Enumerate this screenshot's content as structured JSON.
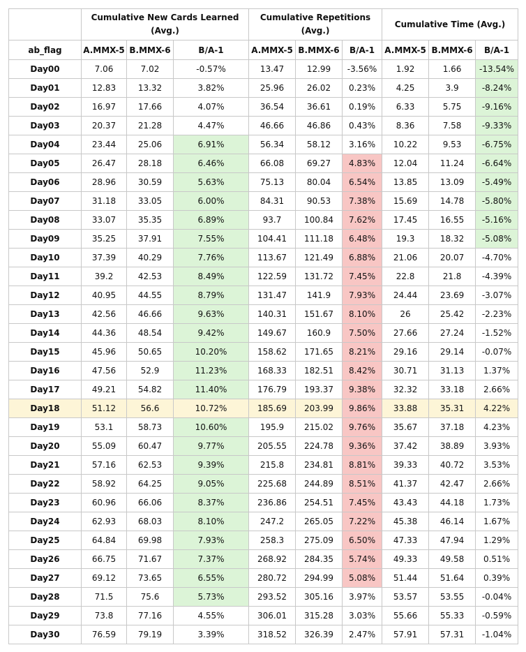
{
  "headers": {
    "groups": [
      "Cumulative New Cards Learned (Avg.)",
      "Cumulative Repetitions (Avg.)",
      "Cumulative Time (Avg.)"
    ],
    "row_label": "ab_flag",
    "sub": [
      "A.MMX-5",
      "B.MMX-6",
      "B/A-1",
      "A.MMX-5",
      "B.MMX-6",
      "B/A-1",
      "A.MMX-5",
      "B.MMX-6",
      "B/A-1"
    ]
  },
  "colors": {
    "positive_fill": "#dcf4d7",
    "negative_fill": "#f8c6c4",
    "highlight_row": "#fdf5d7"
  },
  "highlight_row": "Day18",
  "rows": [
    {
      "day": "Day00",
      "c1": [
        "7.06",
        "7.02",
        "-0.57%"
      ],
      "c2": [
        "13.47",
        "12.99",
        "-3.56%"
      ],
      "c3": [
        "1.92",
        "1.66",
        "-13.54%"
      ],
      "s1": "",
      "s2": "",
      "s3": "pos"
    },
    {
      "day": "Day01",
      "c1": [
        "12.83",
        "13.32",
        "3.82%"
      ],
      "c2": [
        "25.96",
        "26.02",
        "0.23%"
      ],
      "c3": [
        "4.25",
        "3.9",
        "-8.24%"
      ],
      "s1": "",
      "s2": "",
      "s3": "pos"
    },
    {
      "day": "Day02",
      "c1": [
        "16.97",
        "17.66",
        "4.07%"
      ],
      "c2": [
        "36.54",
        "36.61",
        "0.19%"
      ],
      "c3": [
        "6.33",
        "5.75",
        "-9.16%"
      ],
      "s1": "",
      "s2": "",
      "s3": "pos"
    },
    {
      "day": "Day03",
      "c1": [
        "20.37",
        "21.28",
        "4.47%"
      ],
      "c2": [
        "46.66",
        "46.86",
        "0.43%"
      ],
      "c3": [
        "8.36",
        "7.58",
        "-9.33%"
      ],
      "s1": "",
      "s2": "",
      "s3": "pos"
    },
    {
      "day": "Day04",
      "c1": [
        "23.44",
        "25.06",
        "6.91%"
      ],
      "c2": [
        "56.34",
        "58.12",
        "3.16%"
      ],
      "c3": [
        "10.22",
        "9.53",
        "-6.75%"
      ],
      "s1": "pos",
      "s2": "",
      "s3": "pos"
    },
    {
      "day": "Day05",
      "c1": [
        "26.47",
        "28.18",
        "6.46%"
      ],
      "c2": [
        "66.08",
        "69.27",
        "4.83%"
      ],
      "c3": [
        "12.04",
        "11.24",
        "-6.64%"
      ],
      "s1": "pos",
      "s2": "neg",
      "s3": "pos"
    },
    {
      "day": "Day06",
      "c1": [
        "28.96",
        "30.59",
        "5.63%"
      ],
      "c2": [
        "75.13",
        "80.04",
        "6.54%"
      ],
      "c3": [
        "13.85",
        "13.09",
        "-5.49%"
      ],
      "s1": "pos",
      "s2": "neg",
      "s3": "pos"
    },
    {
      "day": "Day07",
      "c1": [
        "31.18",
        "33.05",
        "6.00%"
      ],
      "c2": [
        "84.31",
        "90.53",
        "7.38%"
      ],
      "c3": [
        "15.69",
        "14.78",
        "-5.80%"
      ],
      "s1": "pos",
      "s2": "neg",
      "s3": "pos"
    },
    {
      "day": "Day08",
      "c1": [
        "33.07",
        "35.35",
        "6.89%"
      ],
      "c2": [
        "93.7",
        "100.84",
        "7.62%"
      ],
      "c3": [
        "17.45",
        "16.55",
        "-5.16%"
      ],
      "s1": "pos",
      "s2": "neg",
      "s3": "pos"
    },
    {
      "day": "Day09",
      "c1": [
        "35.25",
        "37.91",
        "7.55%"
      ],
      "c2": [
        "104.41",
        "111.18",
        "6.48%"
      ],
      "c3": [
        "19.3",
        "18.32",
        "-5.08%"
      ],
      "s1": "pos",
      "s2": "neg",
      "s3": "pos"
    },
    {
      "day": "Day10",
      "c1": [
        "37.39",
        "40.29",
        "7.76%"
      ],
      "c2": [
        "113.67",
        "121.49",
        "6.88%"
      ],
      "c3": [
        "21.06",
        "20.07",
        "-4.70%"
      ],
      "s1": "pos",
      "s2": "neg",
      "s3": ""
    },
    {
      "day": "Day11",
      "c1": [
        "39.2",
        "42.53",
        "8.49%"
      ],
      "c2": [
        "122.59",
        "131.72",
        "7.45%"
      ],
      "c3": [
        "22.8",
        "21.8",
        "-4.39%"
      ],
      "s1": "pos",
      "s2": "neg",
      "s3": ""
    },
    {
      "day": "Day12",
      "c1": [
        "40.95",
        "44.55",
        "8.79%"
      ],
      "c2": [
        "131.47",
        "141.9",
        "7.93%"
      ],
      "c3": [
        "24.44",
        "23.69",
        "-3.07%"
      ],
      "s1": "pos",
      "s2": "neg",
      "s3": ""
    },
    {
      "day": "Day13",
      "c1": [
        "42.56",
        "46.66",
        "9.63%"
      ],
      "c2": [
        "140.31",
        "151.67",
        "8.10%"
      ],
      "c3": [
        "26",
        "25.42",
        "-2.23%"
      ],
      "s1": "pos",
      "s2": "neg",
      "s3": ""
    },
    {
      "day": "Day14",
      "c1": [
        "44.36",
        "48.54",
        "9.42%"
      ],
      "c2": [
        "149.67",
        "160.9",
        "7.50%"
      ],
      "c3": [
        "27.66",
        "27.24",
        "-1.52%"
      ],
      "s1": "pos",
      "s2": "neg",
      "s3": ""
    },
    {
      "day": "Day15",
      "c1": [
        "45.96",
        "50.65",
        "10.20%"
      ],
      "c2": [
        "158.62",
        "171.65",
        "8.21%"
      ],
      "c3": [
        "29.16",
        "29.14",
        "-0.07%"
      ],
      "s1": "pos",
      "s2": "neg",
      "s3": ""
    },
    {
      "day": "Day16",
      "c1": [
        "47.56",
        "52.9",
        "11.23%"
      ],
      "c2": [
        "168.33",
        "182.51",
        "8.42%"
      ],
      "c3": [
        "30.71",
        "31.13",
        "1.37%"
      ],
      "s1": "pos",
      "s2": "neg",
      "s3": ""
    },
    {
      "day": "Day17",
      "c1": [
        "49.21",
        "54.82",
        "11.40%"
      ],
      "c2": [
        "176.79",
        "193.37",
        "9.38%"
      ],
      "c3": [
        "32.32",
        "33.18",
        "2.66%"
      ],
      "s1": "pos",
      "s2": "neg",
      "s3": ""
    },
    {
      "day": "Day18",
      "c1": [
        "51.12",
        "56.6",
        "10.72%"
      ],
      "c2": [
        "185.69",
        "203.99",
        "9.86%"
      ],
      "c3": [
        "33.88",
        "35.31",
        "4.22%"
      ],
      "s1": "",
      "s2": "neg",
      "s3": ""
    },
    {
      "day": "Day19",
      "c1": [
        "53.1",
        "58.73",
        "10.60%"
      ],
      "c2": [
        "195.9",
        "215.02",
        "9.76%"
      ],
      "c3": [
        "35.67",
        "37.18",
        "4.23%"
      ],
      "s1": "pos",
      "s2": "neg",
      "s3": ""
    },
    {
      "day": "Day20",
      "c1": [
        "55.09",
        "60.47",
        "9.77%"
      ],
      "c2": [
        "205.55",
        "224.78",
        "9.36%"
      ],
      "c3": [
        "37.42",
        "38.89",
        "3.93%"
      ],
      "s1": "pos",
      "s2": "neg",
      "s3": ""
    },
    {
      "day": "Day21",
      "c1": [
        "57.16",
        "62.53",
        "9.39%"
      ],
      "c2": [
        "215.8",
        "234.81",
        "8.81%"
      ],
      "c3": [
        "39.33",
        "40.72",
        "3.53%"
      ],
      "s1": "pos",
      "s2": "neg",
      "s3": ""
    },
    {
      "day": "Day22",
      "c1": [
        "58.92",
        "64.25",
        "9.05%"
      ],
      "c2": [
        "225.68",
        "244.89",
        "8.51%"
      ],
      "c3": [
        "41.37",
        "42.47",
        "2.66%"
      ],
      "s1": "pos",
      "s2": "neg",
      "s3": ""
    },
    {
      "day": "Day23",
      "c1": [
        "60.96",
        "66.06",
        "8.37%"
      ],
      "c2": [
        "236.86",
        "254.51",
        "7.45%"
      ],
      "c3": [
        "43.43",
        "44.18",
        "1.73%"
      ],
      "s1": "pos",
      "s2": "neg",
      "s3": ""
    },
    {
      "day": "Day24",
      "c1": [
        "62.93",
        "68.03",
        "8.10%"
      ],
      "c2": [
        "247.2",
        "265.05",
        "7.22%"
      ],
      "c3": [
        "45.38",
        "46.14",
        "1.67%"
      ],
      "s1": "pos",
      "s2": "neg",
      "s3": ""
    },
    {
      "day": "Day25",
      "c1": [
        "64.84",
        "69.98",
        "7.93%"
      ],
      "c2": [
        "258.3",
        "275.09",
        "6.50%"
      ],
      "c3": [
        "47.33",
        "47.94",
        "1.29%"
      ],
      "s1": "pos",
      "s2": "neg",
      "s3": ""
    },
    {
      "day": "Day26",
      "c1": [
        "66.75",
        "71.67",
        "7.37%"
      ],
      "c2": [
        "268.92",
        "284.35",
        "5.74%"
      ],
      "c3": [
        "49.33",
        "49.58",
        "0.51%"
      ],
      "s1": "pos",
      "s2": "neg",
      "s3": ""
    },
    {
      "day": "Day27",
      "c1": [
        "69.12",
        "73.65",
        "6.55%"
      ],
      "c2": [
        "280.72",
        "294.99",
        "5.08%"
      ],
      "c3": [
        "51.44",
        "51.64",
        "0.39%"
      ],
      "s1": "pos",
      "s2": "neg",
      "s3": ""
    },
    {
      "day": "Day28",
      "c1": [
        "71.5",
        "75.6",
        "5.73%"
      ],
      "c2": [
        "293.52",
        "305.16",
        "3.97%"
      ],
      "c3": [
        "53.57",
        "53.55",
        "-0.04%"
      ],
      "s1": "pos",
      "s2": "",
      "s3": ""
    },
    {
      "day": "Day29",
      "c1": [
        "73.8",
        "77.16",
        "4.55%"
      ],
      "c2": [
        "306.01",
        "315.28",
        "3.03%"
      ],
      "c3": [
        "55.66",
        "55.33",
        "-0.59%"
      ],
      "s1": "",
      "s2": "",
      "s3": ""
    },
    {
      "day": "Day30",
      "c1": [
        "76.59",
        "79.19",
        "3.39%"
      ],
      "c2": [
        "318.52",
        "326.39",
        "2.47%"
      ],
      "c3": [
        "57.91",
        "57.31",
        "-1.04%"
      ],
      "s1": "",
      "s2": "",
      "s3": ""
    }
  ]
}
